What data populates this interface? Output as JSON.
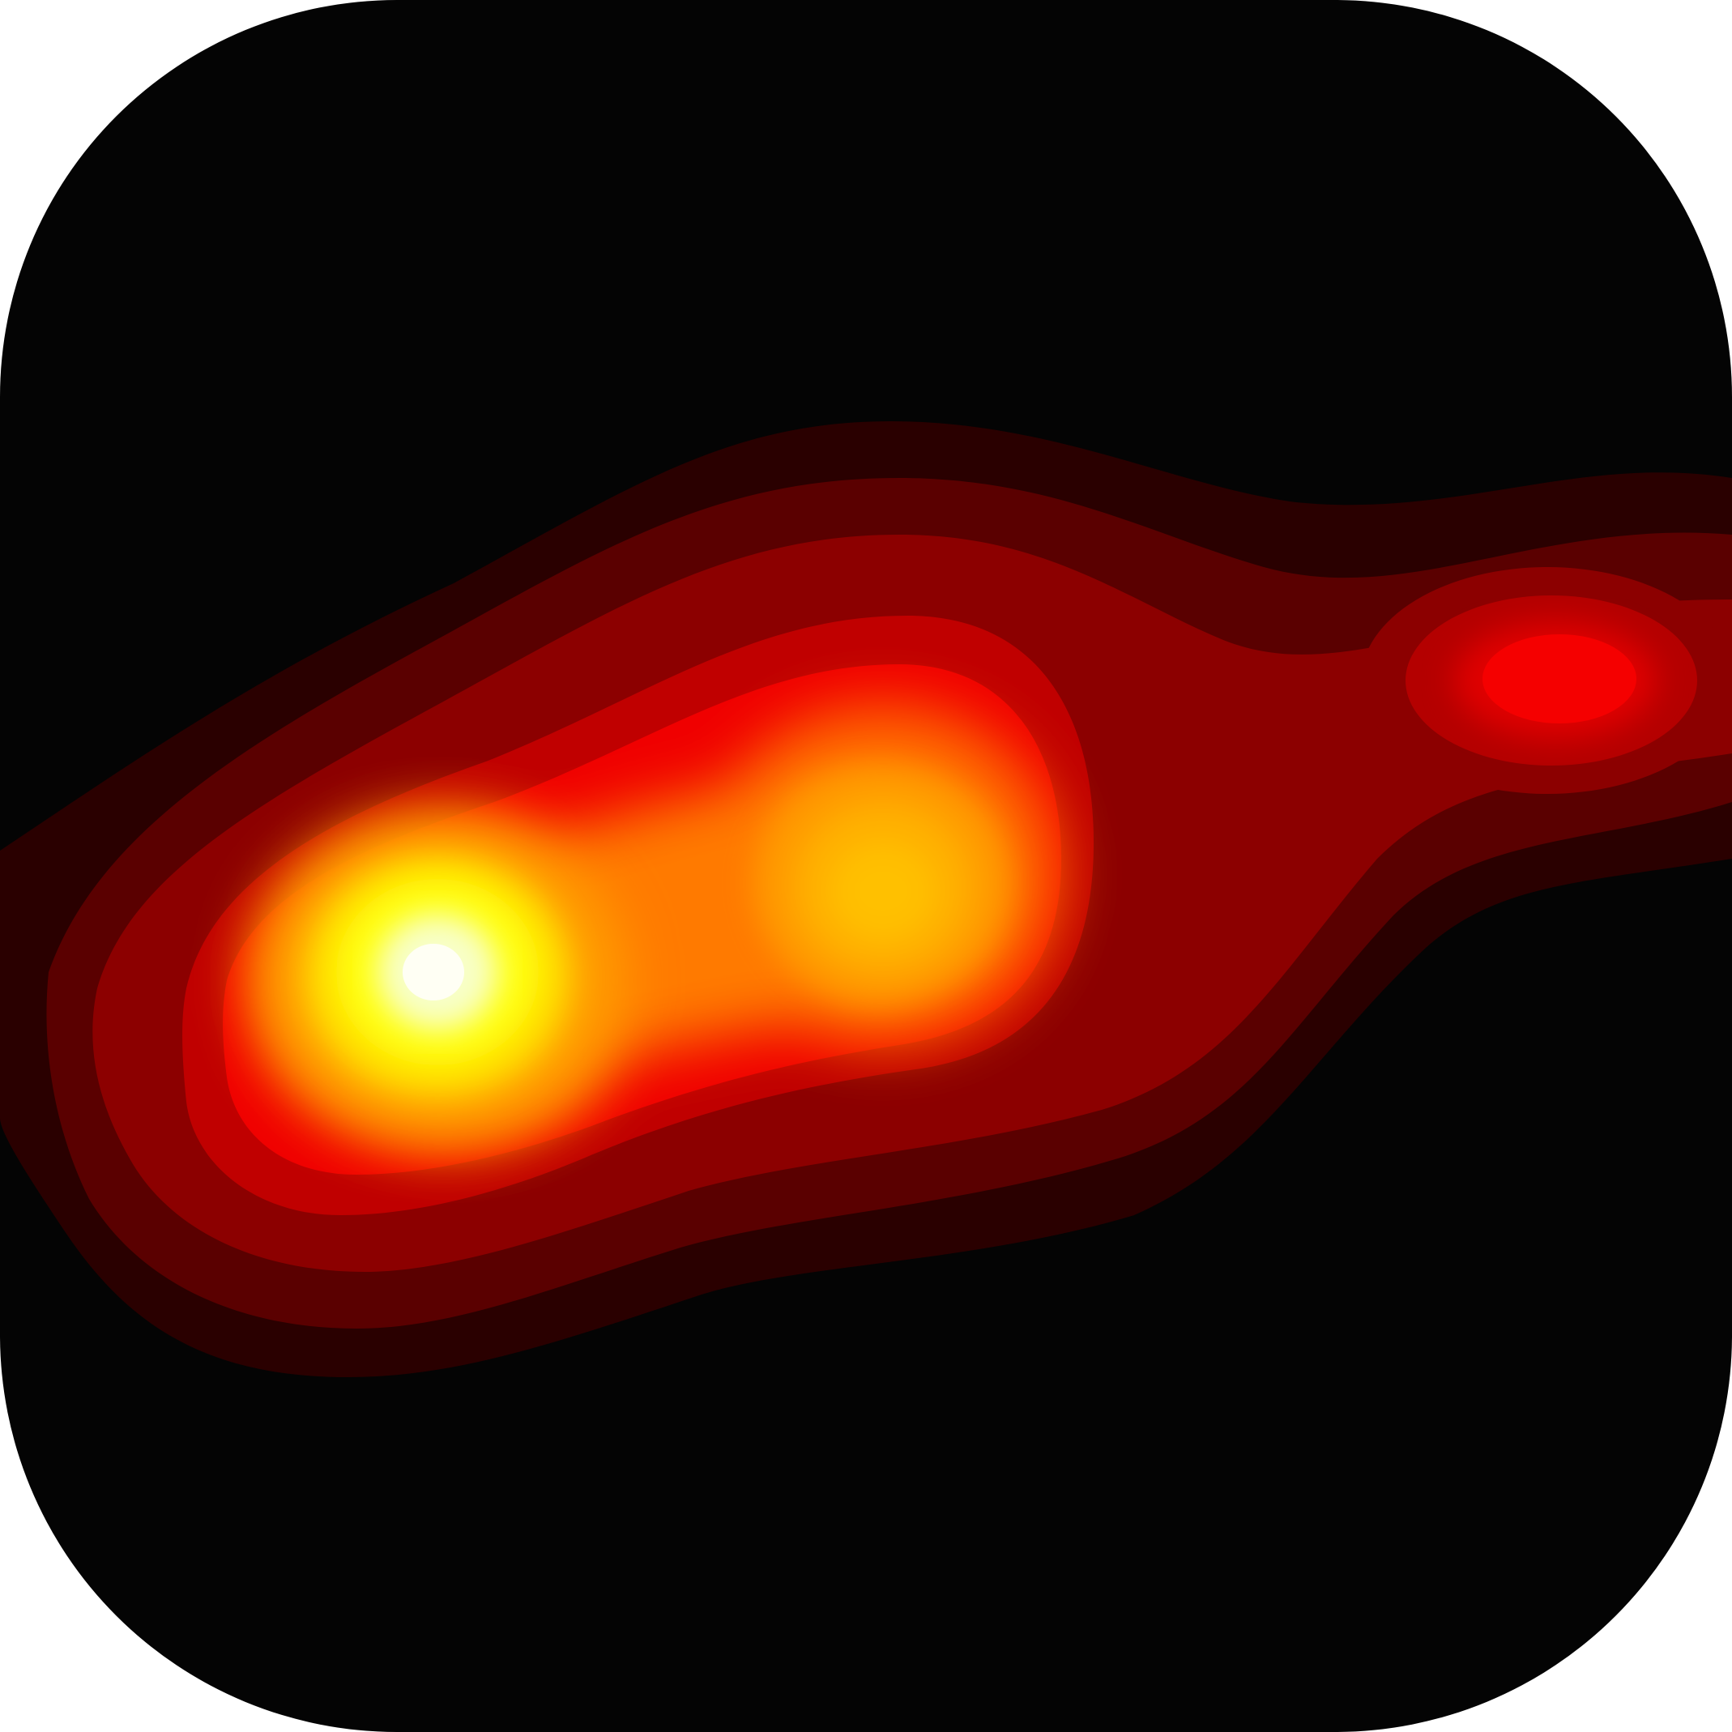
{
  "icon": {
    "name": "contour-heatmap-app-icon",
    "background_color": "#040404",
    "colors": {
      "black": "#040404",
      "dark_maroon": "#2a0000",
      "maroon": "#5a0000",
      "dark_red": "#8c0000",
      "red": "#d00000",
      "bright_red": "#f50000",
      "orange": "#ff7a00",
      "amber": "#ffb000",
      "yellow": "#ffff10",
      "white_core": "#fffff4"
    },
    "hotspots": [
      {
        "name": "primary-hotspot",
        "color_peak": "#fffff4"
      },
      {
        "name": "secondary-hotspot",
        "color_peak": "#ffb000"
      },
      {
        "name": "tertiary-hotspot",
        "color_peak": "#f50000"
      }
    ]
  }
}
